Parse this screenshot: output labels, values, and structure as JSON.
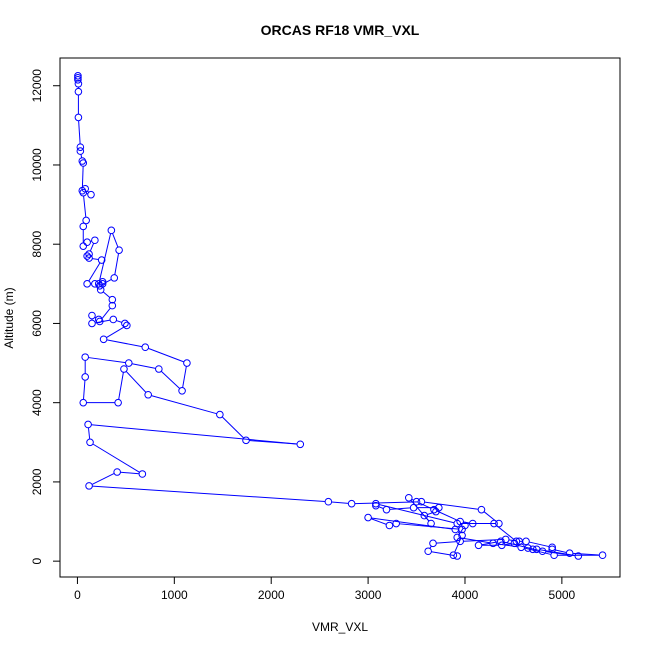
{
  "chart_data": {
    "type": "line",
    "title": "ORCAS RF18 VMR_VXL",
    "xlabel": "VMR_VXL",
    "ylabel": "Altitude (m)",
    "xlim": [
      -180,
      5600
    ],
    "ylim": [
      -400,
      12700
    ],
    "xticks": [
      0,
      1000,
      2000,
      3000,
      4000,
      5000
    ],
    "yticks": [
      0,
      2000,
      4000,
      6000,
      8000,
      10000,
      12000
    ],
    "xtick_labels": [
      "0",
      "1000",
      "2000",
      "3000",
      "4000",
      "5000"
    ],
    "ytick_labels": [
      "0",
      "2000",
      "4000",
      "6000",
      "8000",
      "10000",
      "12000"
    ],
    "grid": false,
    "series_color": "#0000ff",
    "marker": "open-circle",
    "series": [
      {
        "name": "",
        "points": [
          [
            5,
            12250
          ],
          [
            5,
            12200
          ],
          [
            5,
            12150
          ],
          [
            10,
            12050
          ],
          [
            10,
            11850
          ],
          [
            10,
            11200
          ],
          [
            30,
            10450
          ],
          [
            30,
            10350
          ],
          [
            50,
            10100
          ],
          [
            60,
            10050
          ],
          [
            50,
            9350
          ],
          [
            80,
            9400
          ],
          [
            140,
            9250
          ],
          [
            60,
            9300
          ],
          [
            90,
            8600
          ],
          [
            60,
            8450
          ],
          [
            60,
            7950
          ],
          [
            100,
            8050
          ],
          [
            180,
            8100
          ],
          [
            120,
            7750
          ],
          [
            100,
            7700
          ],
          [
            120,
            7650
          ],
          [
            250,
            7600
          ],
          [
            100,
            7000
          ],
          [
            180,
            7000
          ],
          [
            260,
            7000
          ],
          [
            260,
            7050
          ],
          [
            220,
            7000
          ],
          [
            350,
            8350
          ],
          [
            430,
            7850
          ],
          [
            380,
            7150
          ],
          [
            230,
            6950
          ],
          [
            240,
            6850
          ],
          [
            360,
            6600
          ],
          [
            360,
            6450
          ],
          [
            230,
            6050
          ],
          [
            220,
            6100
          ],
          [
            150,
            6200
          ],
          [
            150,
            6000
          ],
          [
            370,
            6100
          ],
          [
            490,
            6000
          ],
          [
            510,
            5950
          ],
          [
            270,
            5600
          ],
          [
            700,
            5400
          ],
          [
            1130,
            5000
          ],
          [
            1080,
            4300
          ],
          [
            840,
            4850
          ],
          [
            530,
            5000
          ],
          [
            80,
            5150
          ],
          [
            80,
            4650
          ],
          [
            60,
            4000
          ],
          [
            420,
            4000
          ],
          [
            480,
            4850
          ],
          [
            730,
            4200
          ],
          [
            1470,
            3700
          ],
          [
            1740,
            3050
          ],
          [
            2300,
            2950
          ],
          [
            110,
            3450
          ],
          [
            130,
            3000
          ],
          [
            670,
            2200
          ],
          [
            410,
            2250
          ],
          [
            120,
            1900
          ],
          [
            2590,
            1500
          ],
          [
            2830,
            1450
          ],
          [
            3550,
            1500
          ],
          [
            4170,
            1300
          ],
          [
            4350,
            950
          ],
          [
            3920,
            950
          ],
          [
            3080,
            1450
          ],
          [
            3080,
            1400
          ],
          [
            3190,
            1300
          ],
          [
            3470,
            1350
          ],
          [
            3730,
            1350
          ],
          [
            3700,
            1250
          ],
          [
            3580,
            1150
          ],
          [
            3650,
            950
          ],
          [
            3420,
            1600
          ],
          [
            3500,
            1500
          ],
          [
            3680,
            1300
          ],
          [
            3950,
            1000
          ],
          [
            4080,
            950
          ],
          [
            4300,
            950
          ],
          [
            4530,
            500
          ],
          [
            4630,
            500
          ],
          [
            4900,
            350
          ],
          [
            4900,
            300
          ],
          [
            5080,
            200
          ],
          [
            5420,
            150
          ],
          [
            4920,
            150
          ],
          [
            4580,
            350
          ],
          [
            4290,
            450
          ],
          [
            3920,
            600
          ],
          [
            4000,
            900
          ],
          [
            3970,
            800
          ],
          [
            3290,
            950
          ],
          [
            3220,
            900
          ],
          [
            3000,
            1100
          ],
          [
            3900,
            800
          ],
          [
            3970,
            650
          ],
          [
            3880,
            150
          ],
          [
            3920,
            130
          ],
          [
            3620,
            250
          ],
          [
            3670,
            450
          ],
          [
            3950,
            500
          ],
          [
            4420,
            550
          ],
          [
            4560,
            500
          ],
          [
            4510,
            450
          ],
          [
            4380,
            400
          ],
          [
            4140,
            400
          ],
          [
            4370,
            500
          ],
          [
            4800,
            250
          ],
          [
            5170,
            130
          ],
          [
            4740,
            300
          ],
          [
            4700,
            300
          ],
          [
            4650,
            330
          ]
        ]
      }
    ]
  }
}
